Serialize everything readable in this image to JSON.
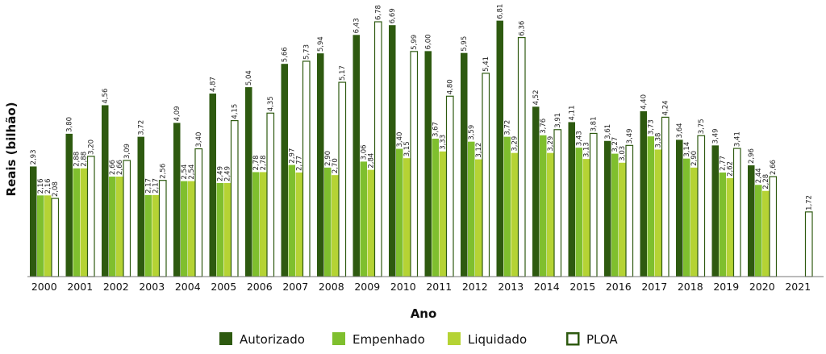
{
  "chart_data": {
    "type": "bar",
    "title": "",
    "xlabel": "Ano",
    "ylabel": "Reais (bilhão)",
    "categories": [
      "2000",
      "2001",
      "2002",
      "2003",
      "2004",
      "2005",
      "2006",
      "2007",
      "2008",
      "2009",
      "2010",
      "2011",
      "2012",
      "2013",
      "2014",
      "2015",
      "2016",
      "2017",
      "2018",
      "2019",
      "2020",
      "2021"
    ],
    "ylim": [
      0,
      7
    ],
    "grid": false,
    "legend_position": "bottom",
    "series": [
      {
        "name": "Autorizado",
        "color": "#2e5a10",
        "fill": "solid",
        "values": [
          2.93,
          3.8,
          4.56,
          3.72,
          4.09,
          4.87,
          5.04,
          5.66,
          5.94,
          6.43,
          6.69,
          6.0,
          5.95,
          6.81,
          4.52,
          4.11,
          3.61,
          4.4,
          3.64,
          3.49,
          2.96,
          null
        ],
        "labels": [
          "2,93",
          "3,80",
          "4,56",
          "3,72",
          "4,09",
          "4,87",
          "5,04",
          "5,66",
          "5,94",
          "6,43",
          "6,69",
          "6,00",
          "5,95",
          "6,81",
          "4,52",
          "4,11",
          "3,61",
          "4,40",
          "3,64",
          "3,49",
          "2,96",
          ""
        ]
      },
      {
        "name": "Empenhado",
        "color": "#7fbf2e",
        "fill": "solid",
        "values": [
          2.16,
          2.88,
          2.66,
          2.17,
          2.54,
          2.49,
          2.78,
          2.97,
          2.9,
          3.06,
          3.4,
          3.67,
          3.59,
          3.72,
          3.76,
          3.43,
          3.27,
          3.73,
          3.14,
          2.77,
          2.44,
          null
        ],
        "labels": [
          "2,16",
          "2,88",
          "2,66",
          "2,17",
          "2,54",
          "2,49",
          "2,78",
          "2,97",
          "2,90",
          "3,06",
          "3,40",
          "3,67",
          "3,59",
          "3,72",
          "3,76",
          "3,43",
          "3,27",
          "3,73",
          "3,14",
          "2,77",
          "2,44",
          ""
        ]
      },
      {
        "name": "Liquidado",
        "color": "#b5d334",
        "fill": "solid",
        "values": [
          2.16,
          2.88,
          2.66,
          2.17,
          2.54,
          2.49,
          2.78,
          2.77,
          2.7,
          2.84,
          3.15,
          3.33,
          3.12,
          3.29,
          3.29,
          3.13,
          3.03,
          3.38,
          2.9,
          2.62,
          2.28,
          null
        ],
        "labels": [
          "2,16",
          "2,88",
          "2,66",
          "2,17",
          "2,54",
          "2,49",
          "2,78",
          "2,77",
          "2,70",
          "2,84",
          "3,15",
          "3,33",
          "3,12",
          "3,29",
          "3,29",
          "3,13",
          "3,03",
          "3,38",
          "2,90",
          "2,62",
          "2,28",
          ""
        ]
      },
      {
        "name": "PLOA",
        "color": "#2e5a10",
        "fill": "outline",
        "values": [
          2.08,
          3.2,
          3.09,
          2.56,
          3.4,
          4.15,
          4.35,
          5.73,
          5.17,
          6.78,
          5.99,
          4.8,
          5.41,
          6.36,
          3.91,
          3.81,
          3.49,
          4.24,
          3.75,
          3.41,
          2.66,
          1.72
        ],
        "labels": [
          "2,08",
          "3,20",
          "3,09",
          "2,56",
          "3,40",
          "4,15",
          "4,35",
          "5,73",
          "5,17",
          "6,78",
          "5,99",
          "4,80",
          "5,41",
          "6,36",
          "3,91",
          "3,81",
          "3,49",
          "4,24",
          "3,75",
          "3,41",
          "2,66",
          "1,72"
        ]
      }
    ]
  }
}
